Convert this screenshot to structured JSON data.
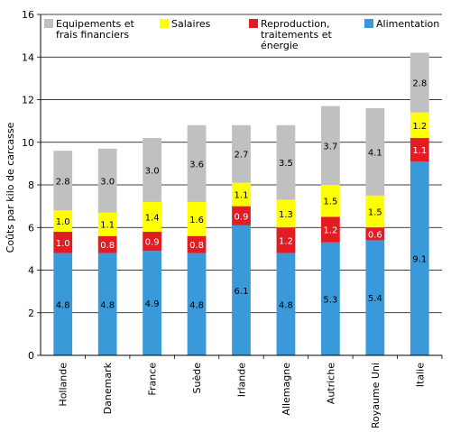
{
  "chart_data": {
    "type": "bar",
    "stacked": true,
    "title": "",
    "xlabel": "",
    "ylabel": "Coûts par kilo de carcasse",
    "ylim": [
      0,
      16
    ],
    "yticks": [
      0,
      2,
      4,
      6,
      8,
      10,
      12,
      14,
      16
    ],
    "grid": true,
    "legend_position": "top",
    "categories": [
      "Hollande",
      "Danemark",
      "France",
      "Suède",
      "Irlande",
      "Allemagne",
      "Autriche",
      "Royaume Uni",
      "Italie"
    ],
    "series": [
      {
        "name": "Alimentation",
        "color": "#3a9ad9",
        "values": [
          4.8,
          4.8,
          4.9,
          4.8,
          6.1,
          4.8,
          5.3,
          5.4,
          9.1
        ],
        "labels": [
          "4.8",
          "4.8",
          "4.9",
          "4.8",
          "6.1",
          "4.8",
          "5.3",
          "5.4",
          "9.1"
        ]
      },
      {
        "name": "Reproduction, traitements et énergie",
        "color": "#e31b23",
        "values": [
          1.0,
          0.8,
          0.9,
          0.8,
          0.9,
          1.2,
          1.2,
          0.6,
          1.1
        ],
        "labels": [
          "1.0",
          "0.8",
          "0.9",
          "0.8",
          "0.9",
          "1.2",
          "1.2",
          "0.6",
          "1.1"
        ]
      },
      {
        "name": "Salaires",
        "color": "#ffff00",
        "values": [
          1.0,
          1.1,
          1.4,
          1.6,
          1.1,
          1.3,
          1.5,
          1.5,
          1.2
        ],
        "labels": [
          "1.0",
          "1.1",
          "1.4",
          "1.6",
          "1.1",
          "1.3",
          "1.5",
          "1.5",
          "1.2"
        ]
      },
      {
        "name": "Equipements et frais financiers",
        "color": "#c0c0c0",
        "values": [
          2.8,
          3.0,
          3.0,
          3.6,
          2.7,
          3.5,
          3.7,
          4.1,
          2.8
        ],
        "labels": [
          "2.8",
          "3.0",
          "3.0",
          "3.6",
          "2.7",
          "3.5",
          "3.7",
          "4.1",
          "2.8"
        ]
      }
    ],
    "legend": [
      {
        "lines": [
          "Equipements et",
          "frais financiers"
        ],
        "color": "#c0c0c0"
      },
      {
        "lines": [
          "Salaires"
        ],
        "color": "#ffff00"
      },
      {
        "lines": [
          "Reproduction,",
          "traitements et",
          "énergie"
        ],
        "color": "#e31b23"
      },
      {
        "lines": [
          "Alimentation"
        ],
        "color": "#3a9ad9"
      }
    ]
  }
}
